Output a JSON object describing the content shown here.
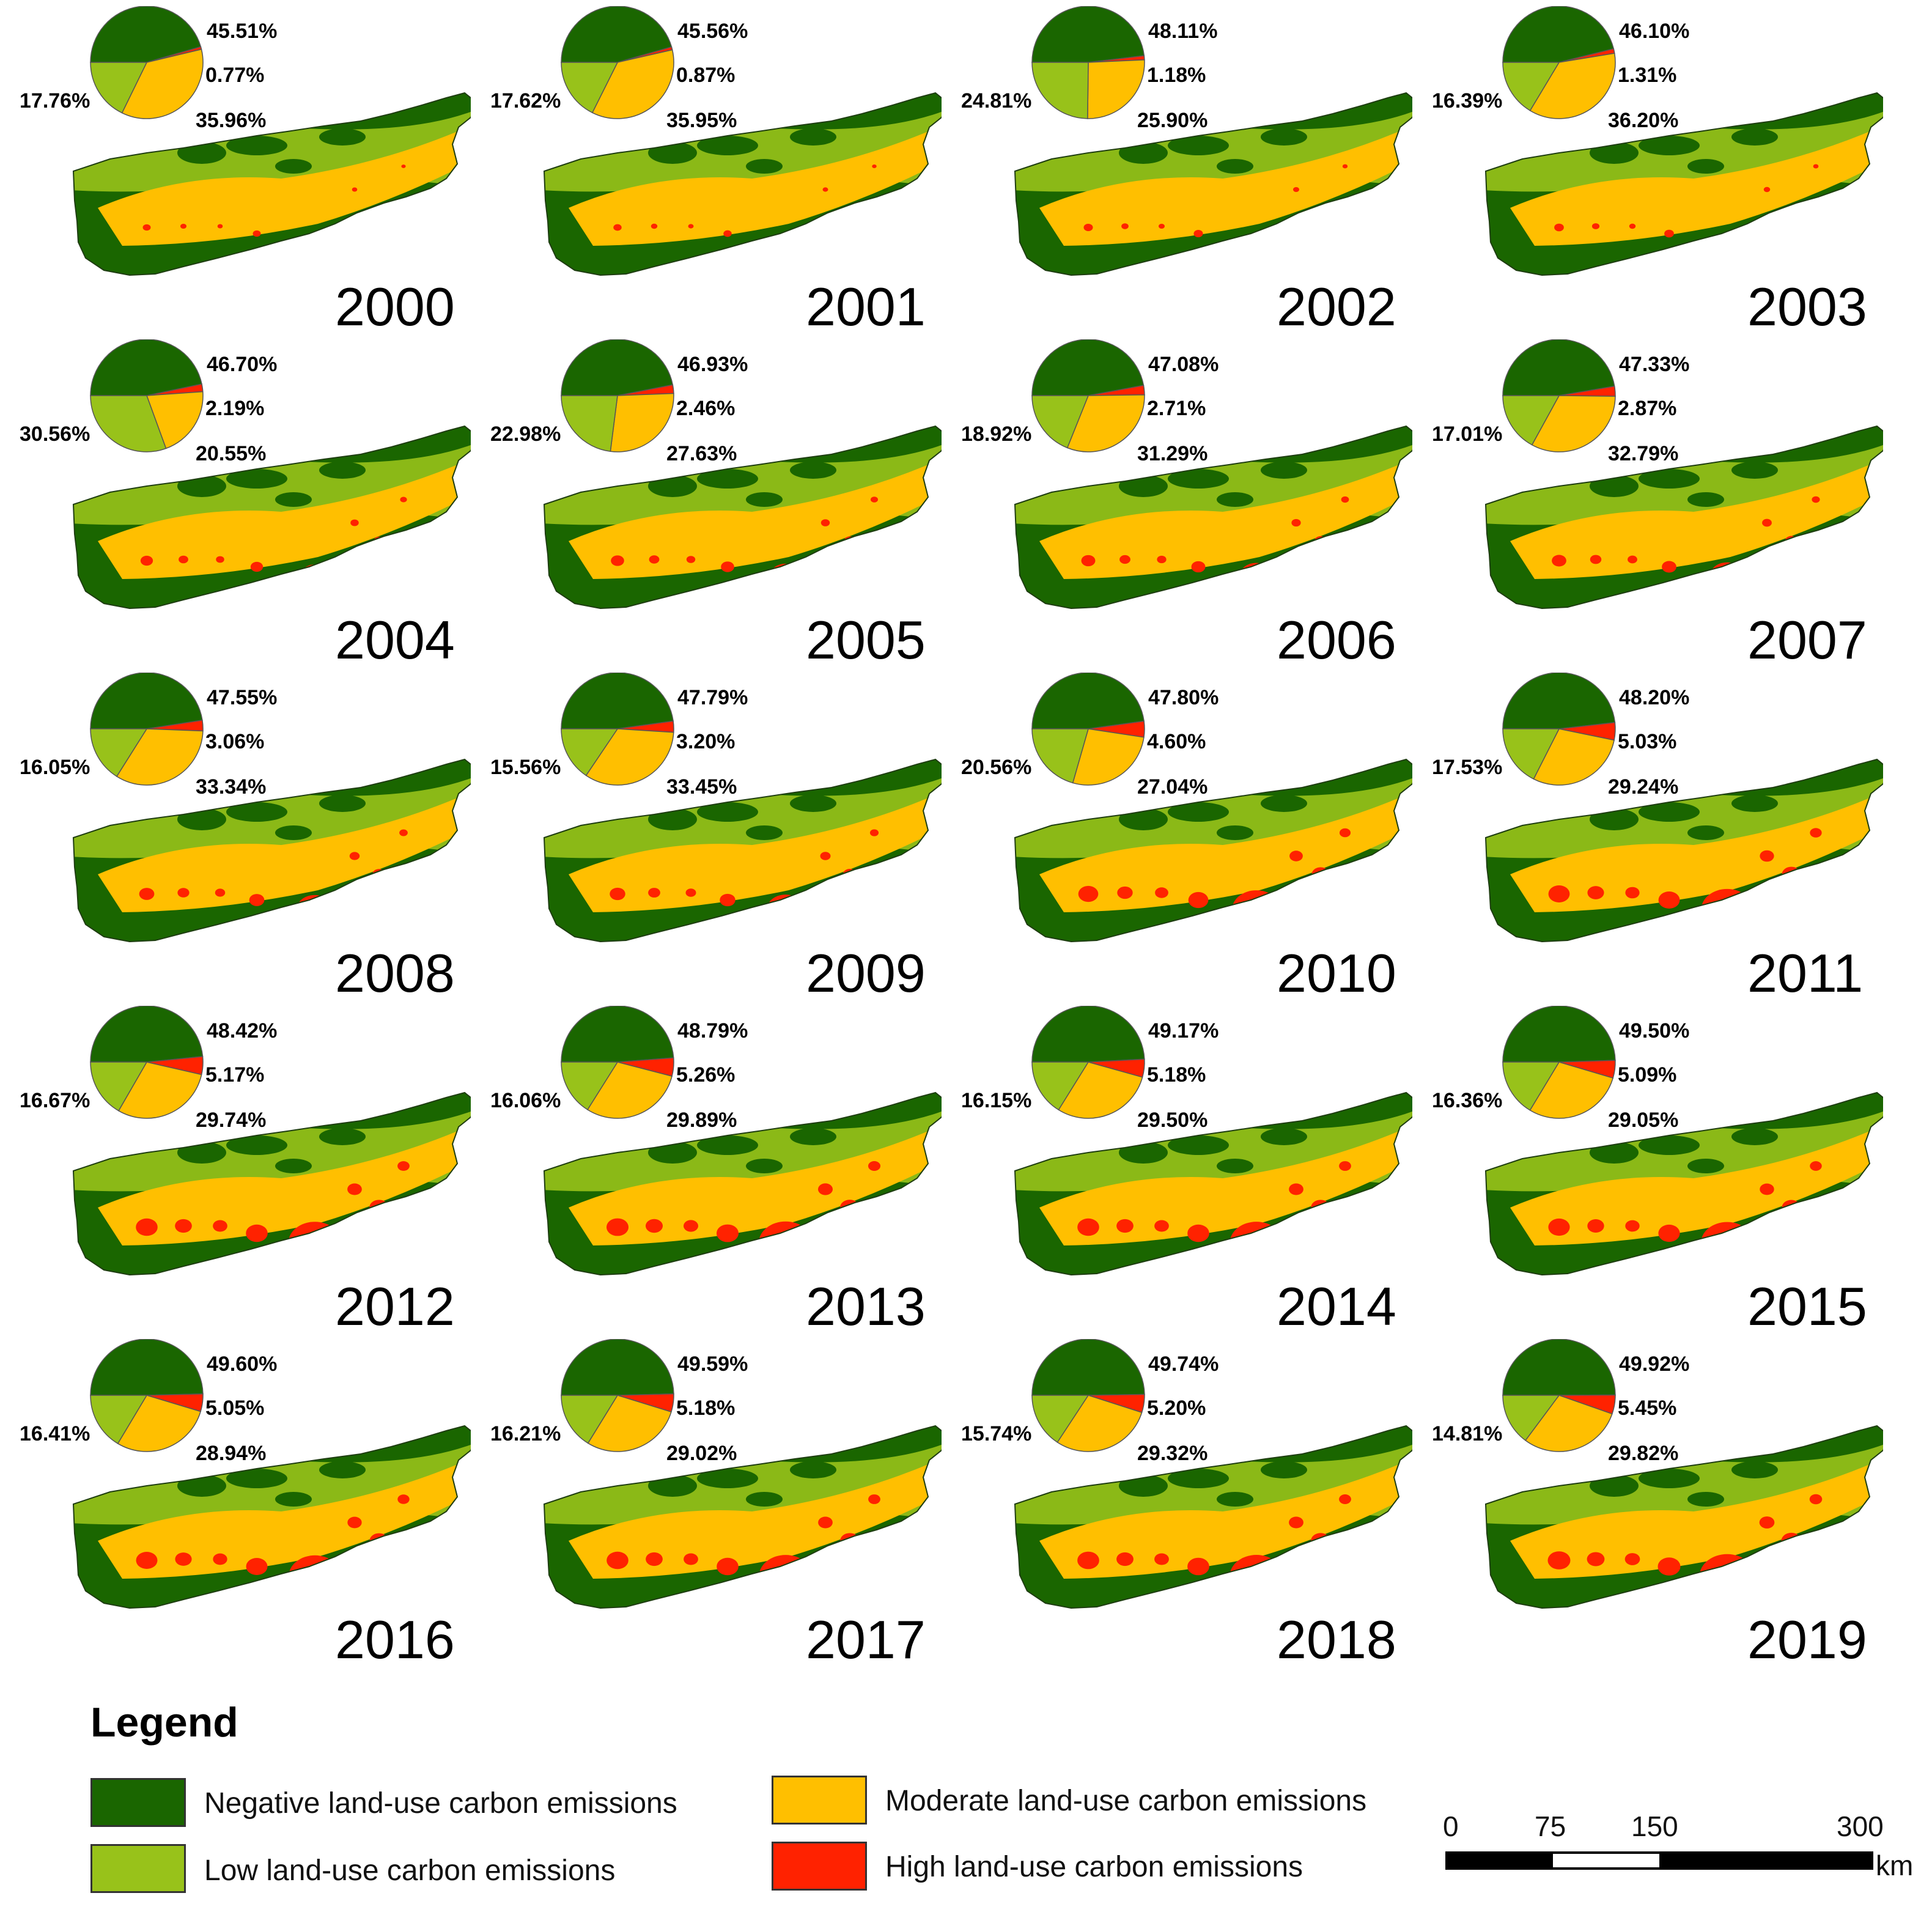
{
  "colors": {
    "negative": "#1a6600",
    "low": "#98c21a",
    "moderate": "#ffbf00",
    "high": "#ff2200"
  },
  "panels": [
    {
      "year": "2000",
      "negative": "45.51%",
      "high": "0.77%",
      "moderate": "35.96%",
      "low": "17.76%",
      "values": [
        45.51,
        0.77,
        35.96,
        17.76
      ]
    },
    {
      "year": "2001",
      "negative": "45.56%",
      "high": "0.87%",
      "moderate": "35.95%",
      "low": "17.62%",
      "values": [
        45.56,
        0.87,
        35.95,
        17.62
      ]
    },
    {
      "year": "2002",
      "negative": "48.11%",
      "high": "1.18%",
      "moderate": "25.90%",
      "low": "24.81%",
      "values": [
        48.11,
        1.18,
        25.9,
        24.81
      ]
    },
    {
      "year": "2003",
      "negative": "46.10%",
      "high": "1.31%",
      "moderate": "36.20%",
      "low": "16.39%",
      "values": [
        46.1,
        1.31,
        36.2,
        16.39
      ]
    },
    {
      "year": "2004",
      "negative": "46.70%",
      "high": "2.19%",
      "moderate": "20.55%",
      "low": "30.56%",
      "values": [
        46.7,
        2.19,
        20.55,
        30.56
      ]
    },
    {
      "year": "2005",
      "negative": "46.93%",
      "high": "2.46%",
      "moderate": "27.63%",
      "low": "22.98%",
      "values": [
        46.93,
        2.46,
        27.63,
        22.98
      ]
    },
    {
      "year": "2006",
      "negative": "47.08%",
      "high": "2.71%",
      "moderate": "31.29%",
      "low": "18.92%",
      "values": [
        47.08,
        2.71,
        31.29,
        18.92
      ]
    },
    {
      "year": "2007",
      "negative": "47.33%",
      "high": "2.87%",
      "moderate": "32.79%",
      "low": "17.01%",
      "values": [
        47.33,
        2.87,
        32.79,
        17.01
      ]
    },
    {
      "year": "2008",
      "negative": "47.55%",
      "high": "3.06%",
      "moderate": "33.34%",
      "low": "16.05%",
      "values": [
        47.55,
        3.06,
        33.34,
        16.05
      ]
    },
    {
      "year": "2009",
      "negative": "47.79%",
      "high": "3.20%",
      "moderate": "33.45%",
      "low": "15.56%",
      "values": [
        47.79,
        3.2,
        33.45,
        15.56
      ]
    },
    {
      "year": "2010",
      "negative": "47.80%",
      "high": "4.60%",
      "moderate": "27.04%",
      "low": "20.56%",
      "values": [
        47.8,
        4.6,
        27.04,
        20.56
      ]
    },
    {
      "year": "2011",
      "negative": "48.20%",
      "high": "5.03%",
      "moderate": "29.24%",
      "low": "17.53%",
      "values": [
        48.2,
        5.03,
        29.24,
        17.53
      ]
    },
    {
      "year": "2012",
      "negative": "48.42%",
      "high": "5.17%",
      "moderate": "29.74%",
      "low": "16.67%",
      "values": [
        48.42,
        5.17,
        29.74,
        16.67
      ]
    },
    {
      "year": "2013",
      "negative": "48.79%",
      "high": "5.26%",
      "moderate": "29.89%",
      "low": "16.06%",
      "values": [
        48.79,
        5.26,
        29.89,
        16.06
      ]
    },
    {
      "year": "2014",
      "negative": "49.17%",
      "high": "5.18%",
      "moderate": "29.50%",
      "low": "16.15%",
      "values": [
        49.17,
        5.18,
        29.5,
        16.15
      ]
    },
    {
      "year": "2015",
      "negative": "49.50%",
      "high": "5.09%",
      "moderate": "29.05%",
      "low": "16.36%",
      "values": [
        49.5,
        5.09,
        29.05,
        16.36
      ]
    },
    {
      "year": "2016",
      "negative": "49.60%",
      "high": "5.05%",
      "moderate": "28.94%",
      "low": "16.41%",
      "values": [
        49.6,
        5.05,
        28.94,
        16.41
      ]
    },
    {
      "year": "2017",
      "negative": "49.59%",
      "high": "5.18%",
      "moderate": "29.02%",
      "low": "16.21%",
      "values": [
        49.59,
        5.18,
        29.02,
        16.21
      ]
    },
    {
      "year": "2018",
      "negative": "49.74%",
      "high": "5.20%",
      "moderate": "29.32%",
      "low": "15.74%",
      "values": [
        49.74,
        5.2,
        29.32,
        15.74
      ]
    },
    {
      "year": "2019",
      "negative": "49.92%",
      "high": "5.45%",
      "moderate": "29.82%",
      "low": "14.81%",
      "values": [
        49.92,
        5.45,
        29.82,
        14.81
      ]
    }
  ],
  "legend": {
    "title": "Legend",
    "items": [
      {
        "label": "Negative land-use carbon emissions"
      },
      {
        "label": "Moderate land-use carbon emissions"
      },
      {
        "label": "Low land-use carbon emissions"
      },
      {
        "label": "High land-use carbon emissions"
      }
    ]
  },
  "scale_bar": {
    "ticks": [
      "0",
      "75",
      "150",
      "300"
    ],
    "unit": "km"
  }
}
